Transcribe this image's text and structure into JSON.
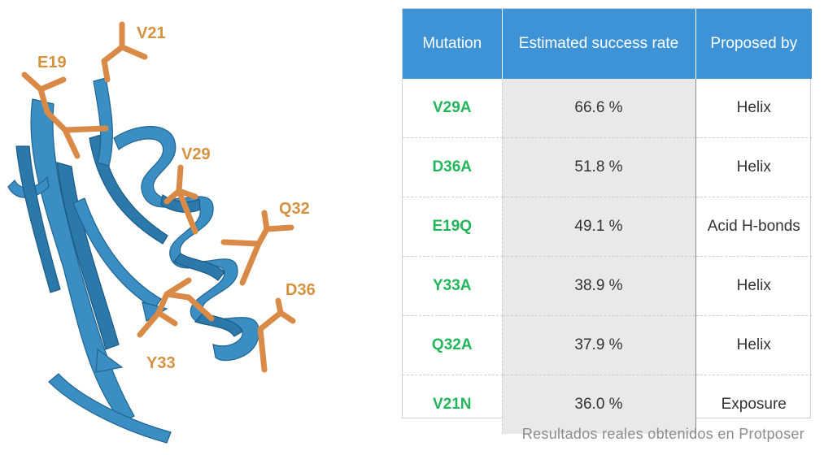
{
  "structure": {
    "residue_labels": [
      {
        "id": "v21",
        "text": "V21"
      },
      {
        "id": "e19",
        "text": "E19"
      },
      {
        "id": "v29",
        "text": "V29"
      },
      {
        "id": "q32",
        "text": "Q32"
      },
      {
        "id": "d36",
        "text": "D36"
      },
      {
        "id": "y33",
        "text": "Y33"
      }
    ],
    "colors": {
      "ribbon": "#3a8ec3",
      "sticks": "#d98a46",
      "labels": "#d4923f"
    }
  },
  "table": {
    "headers": [
      "Mutation",
      "Estimated success rate",
      "Proposed by"
    ],
    "rows": [
      {
        "mutation": "V29A",
        "rate": "66.6 %",
        "by": "Helix"
      },
      {
        "mutation": "D36A",
        "rate": "51.8 %",
        "by": "Helix"
      },
      {
        "mutation": "E19Q",
        "rate": "49.1 %",
        "by": "Acid H-bonds"
      },
      {
        "mutation": "Y33A",
        "rate": "38.9 %",
        "by": "Helix"
      },
      {
        "mutation": "Q32A",
        "rate": "37.9 %",
        "by": "Helix"
      },
      {
        "mutation": "V21N",
        "rate": "36.0 %",
        "by": "Exposure"
      }
    ],
    "colors": {
      "header_bg": "#3d93d6",
      "mutation_text": "#23b55a",
      "rate_bg": "#e9e9e9"
    }
  },
  "caption": "Resultados reales obtenidos en Protposer"
}
